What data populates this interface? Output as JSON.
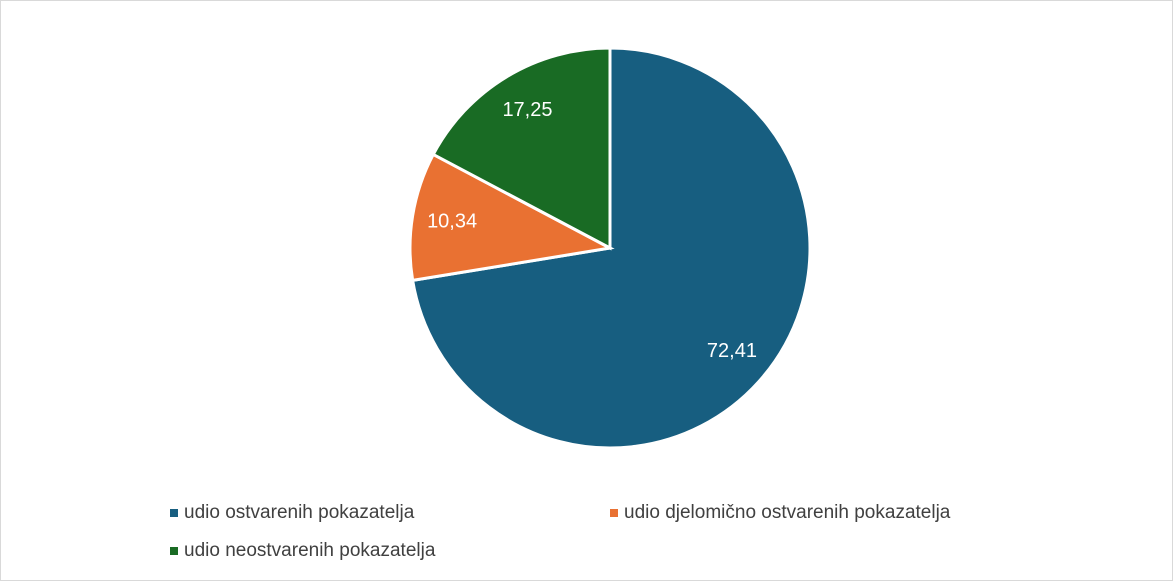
{
  "chart_data": {
    "type": "pie",
    "categories": [
      "udio ostvarenih pokazatelja",
      "udio djelomično ostvarenih pokazatelja",
      "udio neostvarenih pokazatelja"
    ],
    "values": [
      72.41,
      10.34,
      17.25
    ],
    "value_labels": [
      "72,41",
      "10,34",
      "17,25"
    ],
    "colors": [
      "#175e80",
      "#e97132",
      "#196b24"
    ],
    "legend": "bottom"
  }
}
